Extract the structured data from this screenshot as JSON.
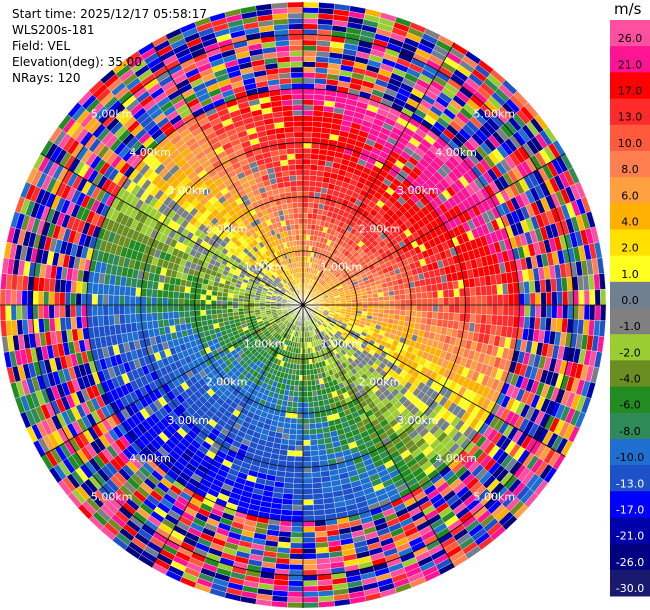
{
  "header": {
    "start_time": "Start time: 2025/12/17 05:58:17",
    "instrument": "WLS200s-181",
    "field": "Field: VEL",
    "elevation": "Elevation(deg): 35.00",
    "nrays": "NRays: 120"
  },
  "colorbar": {
    "unit": "m/s",
    "ticks": [
      "26.0",
      "21.0",
      "17.0",
      "13.0",
      "10.0",
      "8.0",
      "6.0",
      "4.0",
      "2.0",
      "1.0",
      "0.0",
      "-1.0",
      "-2.0",
      "-4.0",
      "-6.0",
      "-8.0",
      "-10.0",
      "-13.0",
      "-17.0",
      "-21.0",
      "-26.0",
      "-30.0"
    ],
    "colors": [
      "#ff4fa0",
      "#ff1493",
      "#ff0000",
      "#ff2a2a",
      "#ff5a3c",
      "#ff7f50",
      "#ffa040",
      "#ffb000",
      "#ffe000",
      "#ffff20",
      "#708090",
      "#808080",
      "#9acd32",
      "#6b8e23",
      "#228b22",
      "#2e8b57",
      "#1e6fd0",
      "#1e50c8",
      "#0000ff",
      "#0000aa",
      "#000080",
      "#191970"
    ]
  },
  "chart_data": {
    "type": "ppi",
    "field": "VEL",
    "nrays": 120,
    "ring_labels": [
      "1.00km",
      "2.00km",
      "3.00km",
      "4.00km",
      "5.00km"
    ],
    "ring_radii_km": [
      1,
      2,
      3,
      4,
      5
    ],
    "max_range_km": 5.6,
    "value_range": [
      -30,
      26
    ]
  }
}
